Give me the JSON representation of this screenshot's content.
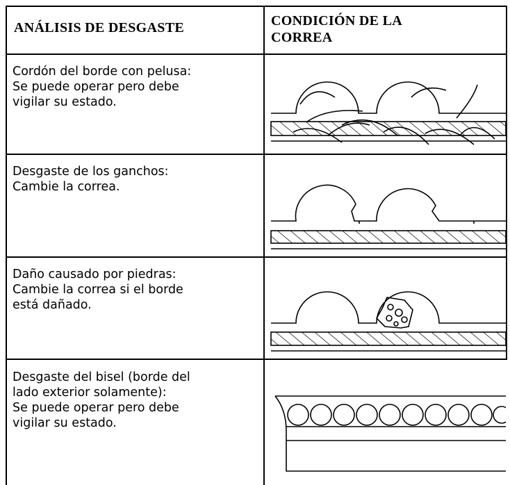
{
  "table": {
    "header": [
      [
        "ANÁLISIS DE DESGASTE"
      ],
      [
        "CONDICIÓN DE LA",
        "CORREA"
      ]
    ],
    "rows": [
      [
        [
          "Cordón del borde con pelusa:",
          "Se puede operar pero debe",
          "vigilar su estado."
        ]
      ],
      [
        [
          "Desgaste de los ganchos:",
          "Cambie la correa."
        ]
      ],
      [
        [
          "Daño causado por piedras:",
          "Cambie la correa si el borde",
          "está dañado."
        ]
      ],
      [
        [
          "Desgaste del bisel (borde del",
          "lado exterior solamente):",
          "Se puede operar pero debe",
          "vigilar su estado."
        ]
      ]
    ]
  }
}
